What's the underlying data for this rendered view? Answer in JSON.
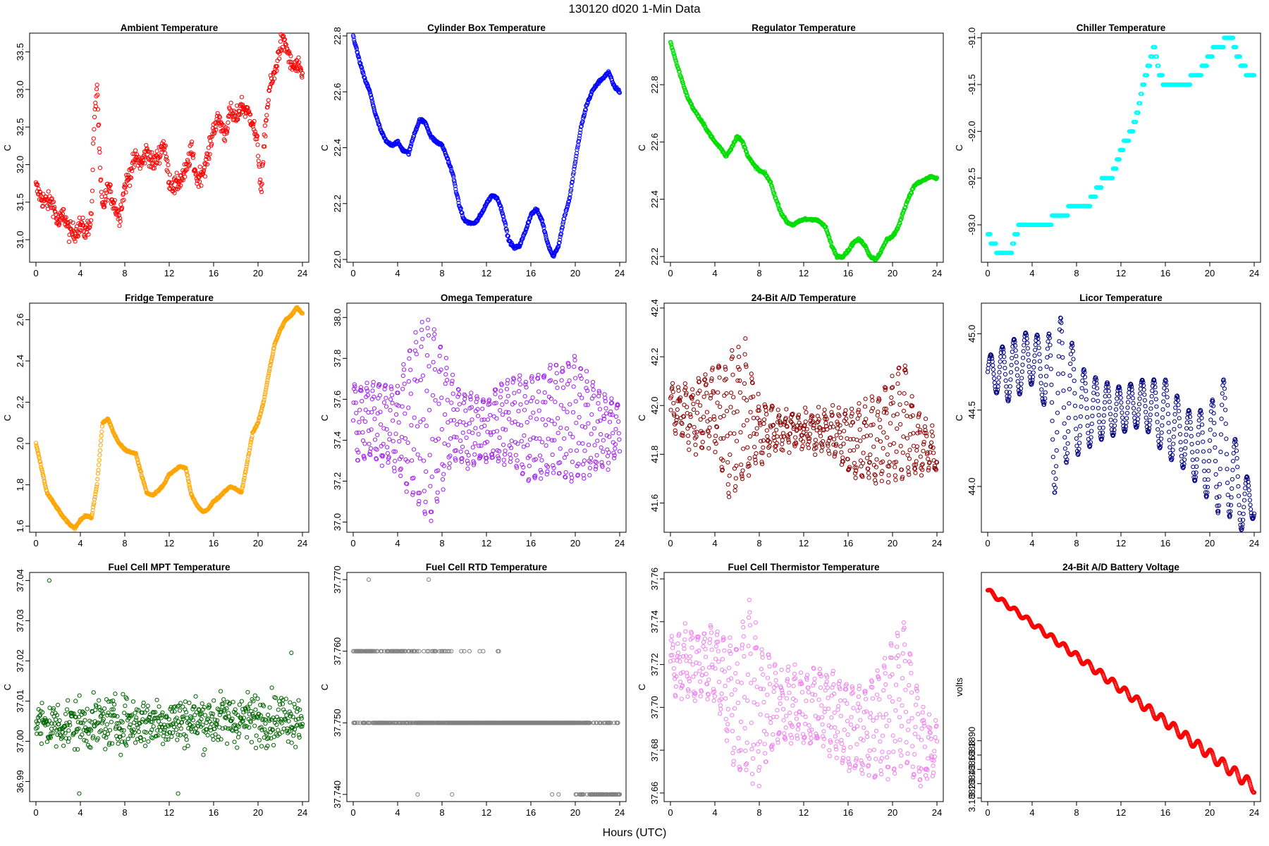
{
  "figure": {
    "title": "130120    d020    1-Min Data",
    "xlabel": "Hours (UTC)"
  },
  "chart_data": [
    {
      "type": "scatter",
      "title": "Ambient Temperature",
      "ylabel": "C",
      "color": "#ff0000",
      "xlim": [
        0,
        24
      ],
      "ylim": [
        30.7,
        33.75
      ],
      "xticks": [
        0,
        4,
        8,
        12,
        16,
        20,
        24
      ],
      "yticks": [
        "31.0",
        "31.5",
        "32.0",
        "32.5",
        "33.0",
        "33.5"
      ],
      "x": [
        0,
        0.5,
        1,
        1.5,
        2,
        2.5,
        3,
        3.5,
        4,
        4.5,
        5,
        5.2,
        5.5,
        5.8,
        6,
        6.5,
        7,
        7.5,
        8,
        8.5,
        9,
        9.5,
        10,
        10.5,
        11,
        11.5,
        12,
        12.5,
        13,
        13.5,
        14,
        14.5,
        15,
        15.5,
        16,
        16.5,
        17,
        17.5,
        18,
        18.5,
        19,
        19.5,
        20,
        20.3,
        20.6,
        21,
        21.5,
        22,
        22.5,
        23,
        23.5,
        24
      ],
      "y": [
        31.7,
        31.55,
        31.5,
        31.5,
        31.2,
        31.35,
        31.1,
        31.1,
        31.2,
        31.1,
        31.3,
        32.4,
        33.1,
        31.8,
        31.4,
        31.7,
        31.5,
        31.3,
        31.7,
        31.9,
        32.1,
        32.0,
        32.2,
        32.0,
        32.1,
        32.3,
        31.8,
        31.7,
        31.8,
        31.9,
        32.2,
        31.8,
        31.9,
        32.1,
        32.5,
        32.6,
        32.4,
        32.7,
        32.6,
        32.8,
        32.7,
        32.6,
        32.2,
        31.6,
        32.4,
        33.0,
        33.2,
        33.6,
        33.6,
        33.3,
        33.3,
        33.2
      ],
      "noise": 0.12
    },
    {
      "type": "scatter",
      "title": "Cylinder Box Temperature",
      "ylabel": "C",
      "color": "#0000ff",
      "xlim": [
        0,
        24
      ],
      "ylim": [
        21.99,
        22.81
      ],
      "xticks": [
        0,
        4,
        8,
        12,
        16,
        20,
        24
      ],
      "yticks": [
        "22.0",
        "22.2",
        "22.4",
        "22.6",
        "22.8"
      ],
      "x": [
        0,
        0.5,
        1,
        1.5,
        2,
        2.5,
        3,
        3.5,
        4,
        4.5,
        5,
        5.5,
        6,
        6.5,
        7,
        7.5,
        8,
        8.5,
        9,
        9.5,
        10,
        10.5,
        11,
        11.5,
        12,
        12.5,
        13,
        13.5,
        14,
        14.5,
        15,
        15.5,
        16,
        16.5,
        17,
        17.5,
        18,
        18.5,
        19,
        19.5,
        20,
        20.5,
        21,
        21.5,
        22,
        22.5,
        23,
        23.5,
        24
      ],
      "y": [
        22.8,
        22.72,
        22.65,
        22.6,
        22.52,
        22.46,
        22.42,
        22.41,
        22.42,
        22.39,
        22.38,
        22.45,
        22.5,
        22.49,
        22.44,
        22.42,
        22.41,
        22.36,
        22.3,
        22.2,
        22.14,
        22.13,
        22.13,
        22.16,
        22.2,
        22.23,
        22.22,
        22.16,
        22.07,
        22.04,
        22.05,
        22.1,
        22.16,
        22.18,
        22.14,
        22.06,
        22.01,
        22.05,
        22.15,
        22.22,
        22.35,
        22.47,
        22.55,
        22.6,
        22.63,
        22.65,
        22.67,
        22.62,
        22.6
      ],
      "noise": 0.005
    },
    {
      "type": "scatter",
      "title": "Regulator Temperature",
      "ylabel": "C",
      "color": "#00dd00",
      "xlim": [
        0,
        24
      ],
      "ylim": [
        22.18,
        22.98
      ],
      "xticks": [
        0,
        4,
        8,
        12,
        16,
        20,
        24
      ],
      "yticks": [
        "22.2",
        "22.4",
        "22.6",
        "22.8"
      ],
      "x": [
        0,
        0.5,
        1,
        1.5,
        2,
        2.5,
        3,
        3.5,
        4,
        4.5,
        5,
        5.5,
        6,
        6.5,
        7,
        7.5,
        8,
        8.5,
        9,
        9.5,
        10,
        10.5,
        11,
        11.5,
        12,
        12.5,
        13,
        13.5,
        14,
        14.5,
        15,
        15.5,
        16,
        16.5,
        17,
        17.5,
        18,
        18.5,
        19,
        19.5,
        20,
        20.5,
        21,
        21.5,
        22,
        22.5,
        23,
        23.5,
        24
      ],
      "y": [
        22.95,
        22.88,
        22.82,
        22.76,
        22.72,
        22.69,
        22.66,
        22.63,
        22.6,
        22.58,
        22.55,
        22.58,
        22.62,
        22.6,
        22.55,
        22.52,
        22.5,
        22.49,
        22.46,
        22.4,
        22.35,
        22.32,
        22.31,
        22.32,
        22.33,
        22.33,
        22.33,
        22.32,
        22.3,
        22.24,
        22.2,
        22.2,
        22.22,
        22.25,
        22.26,
        22.24,
        22.2,
        22.19,
        22.22,
        22.26,
        22.27,
        22.3,
        22.36,
        22.41,
        22.45,
        22.46,
        22.47,
        22.48,
        22.47
      ],
      "noise": 0.004
    },
    {
      "type": "scatter",
      "title": "Chiller Temperature",
      "ylabel": "C",
      "color": "#00ffff",
      "xlim": [
        0,
        24
      ],
      "ylim": [
        -93.4,
        -90.95
      ],
      "xticks": [
        0,
        4,
        8,
        12,
        16,
        20,
        24
      ],
      "yticks": [
        "-93.0",
        "-92.5",
        "-92.0",
        "-91.5",
        "-91.0"
      ],
      "x": [
        0,
        0.5,
        1,
        1.5,
        2,
        2.5,
        3,
        3.5,
        4,
        4.5,
        5,
        5.5,
        6,
        6.5,
        7,
        7.5,
        8,
        8.5,
        9,
        9.5,
        10,
        10.5,
        11,
        11.5,
        12,
        12.5,
        13,
        13.5,
        14,
        14.5,
        15,
        15.5,
        16,
        16.5,
        17,
        17.5,
        18,
        18.5,
        19,
        19.5,
        20,
        20.5,
        21,
        21.5,
        22,
        22.5,
        23,
        23.5,
        24
      ],
      "y": [
        -93.1,
        -93.2,
        -93.3,
        -93.35,
        -93.35,
        -93.1,
        -93.0,
        -93.0,
        -93.0,
        -93.0,
        -93.0,
        -93.0,
        -92.9,
        -92.9,
        -92.9,
        -92.8,
        -92.8,
        -92.8,
        -92.8,
        -92.7,
        -92.6,
        -92.5,
        -92.5,
        -92.4,
        -92.2,
        -92.1,
        -92.0,
        -91.8,
        -91.5,
        -91.3,
        -91.1,
        -91.4,
        -91.5,
        -91.5,
        -91.5,
        -91.5,
        -91.5,
        -91.4,
        -91.4,
        -91.3,
        -91.2,
        -91.1,
        -91.1,
        -91.0,
        -91.0,
        -91.2,
        -91.3,
        -91.4,
        -91.4
      ],
      "quant": 0.1
    },
    {
      "type": "scatter",
      "title": "Fridge Temperature",
      "ylabel": "C",
      "color": "#ffa500",
      "xlim": [
        0,
        24
      ],
      "ylim": [
        1.57,
        2.68
      ],
      "xticks": [
        0,
        4,
        8,
        12,
        16,
        20,
        24
      ],
      "yticks": [
        "1.6",
        "1.8",
        "2.0",
        "2.2",
        "2.4",
        "2.6"
      ],
      "x": [
        0,
        0.5,
        1,
        1.5,
        2,
        2.5,
        3,
        3.5,
        4,
        4.5,
        5,
        5.5,
        6,
        6.5,
        7,
        7.5,
        8,
        8.5,
        9,
        9.5,
        10,
        10.5,
        11,
        11.5,
        12,
        12.5,
        13,
        13.5,
        14,
        14.5,
        15,
        15.5,
        16,
        16.5,
        17,
        17.5,
        18,
        18.5,
        19,
        19.5,
        20,
        20.5,
        21,
        21.5,
        22,
        22.5,
        23,
        23.5,
        24
      ],
      "y": [
        2.0,
        1.88,
        1.76,
        1.72,
        1.68,
        1.64,
        1.61,
        1.59,
        1.63,
        1.65,
        1.64,
        1.8,
        2.1,
        2.12,
        2.05,
        2.0,
        1.97,
        1.96,
        1.95,
        1.85,
        1.76,
        1.75,
        1.77,
        1.8,
        1.85,
        1.87,
        1.89,
        1.88,
        1.75,
        1.7,
        1.67,
        1.68,
        1.72,
        1.74,
        1.77,
        1.79,
        1.78,
        1.76,
        1.9,
        2.05,
        2.1,
        2.2,
        2.35,
        2.48,
        2.55,
        2.6,
        2.62,
        2.66,
        2.63
      ],
      "noise": 0.004
    },
    {
      "type": "scatter",
      "title": "Omega Temperature",
      "ylabel": "C",
      "color": "#a020f0",
      "xlim": [
        0,
        24
      ],
      "ylim": [
        36.95,
        38.07
      ],
      "xticks": [
        0,
        4,
        8,
        12,
        16,
        20,
        24
      ],
      "yticks": [
        "37.0",
        "37.2",
        "37.4",
        "37.6",
        "37.8",
        "38.0"
      ],
      "x": [
        0,
        2,
        4,
        5,
        6,
        7,
        8,
        9,
        10,
        12,
        14,
        16,
        18,
        20,
        22,
        24
      ],
      "y": [
        37.5,
        37.5,
        37.45,
        37.5,
        37.5,
        37.5,
        37.5,
        37.5,
        37.45,
        37.45,
        37.5,
        37.45,
        37.5,
        37.5,
        37.45,
        37.45
      ],
      "osc": {
        "amp": [
          0.18,
          0.18,
          0.2,
          0.35,
          0.45,
          0.5,
          0.35,
          0.18,
          0.18,
          0.15,
          0.2,
          0.25,
          0.25,
          0.3,
          0.2,
          0.12
        ],
        "period": 0.55
      },
      "noise": 0.03
    },
    {
      "type": "scatter",
      "title": "24-Bit A/D Temperature",
      "ylabel": "C",
      "color": "#8b0000",
      "xlim": [
        0,
        24
      ],
      "ylim": [
        41.48,
        42.42
      ],
      "xticks": [
        0,
        4,
        8,
        12,
        16,
        20,
        24
      ],
      "yticks": [
        "41.6",
        "41.8",
        "42.0",
        "42.2",
        "42.4"
      ],
      "x": [
        0,
        2,
        4,
        5,
        6,
        7,
        8,
        10,
        12,
        14,
        16,
        18,
        20,
        21,
        22,
        24
      ],
      "y": [
        42.0,
        41.95,
        42.0,
        41.9,
        41.95,
        41.95,
        41.9,
        41.9,
        41.9,
        41.9,
        41.85,
        41.85,
        41.9,
        41.95,
        41.85,
        41.8
      ],
      "osc": {
        "amp": [
          0.06,
          0.12,
          0.15,
          0.25,
          0.3,
          0.25,
          0.1,
          0.06,
          0.06,
          0.06,
          0.12,
          0.15,
          0.2,
          0.25,
          0.12,
          0.06
        ],
        "period": 0.6
      },
      "noise": 0.04
    },
    {
      "type": "scatter",
      "title": "Licor Temperature",
      "ylabel": "C",
      "color": "#000080",
      "xlim": [
        0,
        24
      ],
      "ylim": [
        43.7,
        45.2
      ],
      "xticks": [
        0,
        4,
        8,
        12,
        16,
        20,
        24
      ],
      "yticks": [
        "44.0",
        "44.5",
        "45.0"
      ],
      "x": [
        0,
        2,
        4,
        5,
        6,
        7,
        8,
        10,
        12,
        14,
        16,
        18,
        20,
        21,
        22,
        23,
        24
      ],
      "y": [
        44.75,
        44.75,
        44.85,
        44.75,
        44.5,
        44.65,
        44.5,
        44.5,
        44.5,
        44.55,
        44.45,
        44.3,
        44.2,
        44.3,
        44.1,
        43.9,
        43.9
      ],
      "osc": {
        "amp": [
          0.1,
          0.2,
          0.18,
          0.2,
          0.55,
          0.5,
          0.3,
          0.2,
          0.15,
          0.15,
          0.25,
          0.2,
          0.3,
          0.5,
          0.3,
          0.2,
          0.1
        ],
        "period": 1.05
      },
      "noise": 0.0
    },
    {
      "type": "scatter",
      "title": "Fuel Cell MPT Temperature",
      "ylabel": "C",
      "color": "#006400",
      "xlim": [
        0,
        24
      ],
      "ylim": [
        36.985,
        37.042
      ],
      "xticks": [
        0,
        4,
        8,
        12,
        16,
        20,
        24
      ],
      "yticks": [
        "36.99",
        "37.00",
        "37.01",
        "37.02",
        "37.03",
        "37.04"
      ],
      "x": [
        0,
        24
      ],
      "y": [
        37.004,
        37.006
      ],
      "noise": 0.006,
      "outliers": [
        [
          1.2,
          37.04
        ],
        [
          3.9,
          36.987
        ],
        [
          12.8,
          36.987
        ],
        [
          23,
          37.022
        ]
      ]
    },
    {
      "type": "scatter",
      "title": "Fuel Cell RTD Temperature",
      "ylabel": "C",
      "color": "#808080",
      "xlim": [
        0,
        24
      ],
      "ylim": [
        37.739,
        37.771
      ],
      "xticks": [
        0,
        4,
        8,
        12,
        16,
        20,
        24
      ],
      "yticks": [
        "37.740",
        "37.750",
        "37.760",
        "37.770"
      ],
      "x": [
        0,
        5,
        6,
        10,
        14,
        18,
        20,
        22,
        24
      ],
      "y": [
        37.756,
        37.754,
        37.753,
        37.752,
        37.751,
        37.749,
        37.748,
        37.744,
        37.743
      ],
      "quant": 0.01,
      "noise": 0.004,
      "outliers": [
        [
          1.4,
          37.77
        ],
        [
          6.8,
          37.77
        ],
        [
          5.8,
          37.74
        ],
        [
          8.9,
          37.74
        ]
      ]
    },
    {
      "type": "scatter",
      "title": "Fuel Cell Thermistor Temperature",
      "ylabel": "C",
      "color": "#ee82ee",
      "xlim": [
        0,
        24
      ],
      "ylim": [
        37.656,
        37.763
      ],
      "xticks": [
        0,
        4,
        8,
        12,
        16,
        20,
        24
      ],
      "yticks": [
        "37.66",
        "37.68",
        "37.70",
        "37.72",
        "37.74",
        "37.76"
      ],
      "x": [
        0,
        2,
        4,
        5,
        6,
        7,
        8,
        10,
        12,
        14,
        16,
        18,
        20,
        21,
        22,
        23,
        24
      ],
      "y": [
        37.72,
        37.72,
        37.72,
        37.71,
        37.7,
        37.71,
        37.7,
        37.7,
        37.7,
        37.7,
        37.69,
        37.69,
        37.7,
        37.71,
        37.69,
        37.68,
        37.68
      ],
      "osc": {
        "amp": [
          0.01,
          0.015,
          0.015,
          0.02,
          0.03,
          0.04,
          0.03,
          0.015,
          0.015,
          0.015,
          0.02,
          0.02,
          0.03,
          0.03,
          0.025,
          0.015,
          0.01
        ],
        "period": 0.58
      },
      "noise": 0.005
    },
    {
      "type": "scatter",
      "title": "24-Bit A/D Battery Voltage",
      "ylabel": "volts",
      "color": "#ff0000",
      "xlim": [
        0,
        24
      ],
      "ylim": [
        3.18815,
        3.19135
      ],
      "xticks": [
        0,
        4,
        8,
        12,
        16,
        20,
        24
      ],
      "yticks": [
        "3.1882",
        "3.1884",
        "3.1886",
        "3.1888",
        "3.1890"
      ],
      "x": [
        0,
        24
      ],
      "y": [
        3.1911,
        3.18835
      ],
      "osc": {
        "amp": [
          3e-05,
          8e-05
        ],
        "period": 1.1
      },
      "noise": 0.0
    }
  ]
}
